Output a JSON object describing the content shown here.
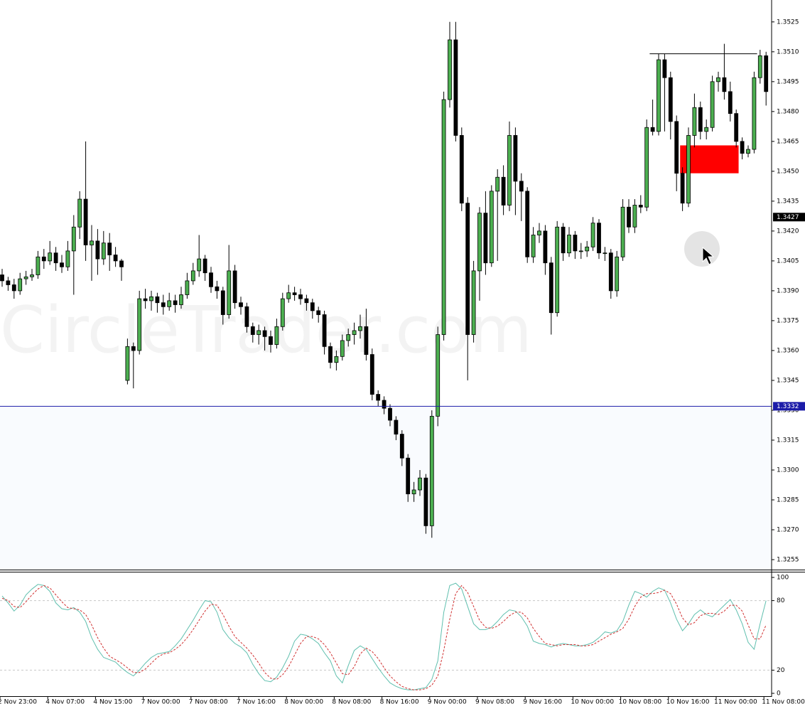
{
  "chart_data": [
    {
      "type": "candlestick",
      "watermark": "CircleTrader.com",
      "categories": [
        "2 Nov 23:00",
        null,
        null,
        null,
        null,
        null,
        null,
        null,
        "4 Nov 07:00",
        null,
        null,
        null,
        null,
        null,
        null,
        null,
        "4 Nov 15:00",
        null,
        null,
        null,
        null,
        null,
        null,
        null,
        "7 Nov 00:00",
        null,
        null,
        null,
        null,
        null,
        null,
        null,
        "7 Nov 08:00",
        null,
        null,
        null,
        null,
        null,
        null,
        null,
        "7 Nov 16:00",
        null,
        null,
        null,
        null,
        null,
        null,
        null,
        "8 Nov 00:00",
        null,
        null,
        null,
        null,
        null,
        null,
        null,
        "8 Nov 08:00",
        null,
        null,
        null,
        null,
        null,
        null,
        null,
        "8 Nov 16:00",
        null,
        null,
        null,
        null,
        null,
        null,
        null,
        "9 Nov 00:00",
        null,
        null,
        null,
        null,
        null,
        null,
        null,
        "9 Nov 08:00",
        null,
        null,
        null,
        null,
        null,
        null,
        null,
        "9 Nov 16:00",
        null,
        null,
        null,
        null,
        null,
        null,
        null,
        "10 Nov 00:00",
        null,
        null,
        null,
        null,
        null,
        null,
        null,
        "10 Nov 08:00",
        null,
        null,
        null,
        null,
        null,
        null,
        null,
        "10 Nov 16:00",
        null,
        null,
        null,
        null,
        null,
        null,
        null,
        "11 Nov 00:00",
        null,
        null,
        null,
        null,
        null,
        null,
        null,
        "11 Nov 08:00"
      ],
      "open": [
        1.3398,
        1.3395,
        1.3393,
        1.339,
        1.3396,
        1.3397,
        1.3398,
        1.3407,
        1.3405,
        1.3409,
        1.3404,
        1.3402,
        1.341,
        1.3422,
        1.3436,
        1.3413,
        1.3415,
        1.3406,
        1.3414,
        1.3408,
        1.3405,
        1.3345,
        1.3362,
        1.336,
        1.3386,
        1.3385,
        1.3387,
        1.3384,
        1.3382,
        1.3385,
        1.3383,
        1.3388,
        1.3395,
        1.34,
        1.3406,
        1.3399,
        1.3392,
        1.339,
        1.3378,
        1.34,
        1.3384,
        1.3382,
        1.3372,
        1.3368,
        1.337,
        1.3367,
        1.3363,
        1.3372,
        1.3386,
        1.3389,
        1.3388,
        1.3386,
        1.3384,
        1.338,
        1.3378,
        1.3362,
        1.3354,
        1.3357,
        1.3365,
        1.3368,
        1.337,
        1.3372,
        1.3358,
        1.3338,
        1.3335,
        1.3331,
        1.3325,
        1.3318,
        1.3306,
        1.3288,
        1.329,
        1.3296,
        1.3272,
        1.3327,
        1.3368,
        1.3486,
        1.3516,
        1.3468,
        1.3434,
        1.3368,
        1.34,
        1.3429,
        1.3404,
        1.344,
        1.3447,
        1.3433,
        1.3468,
        1.3445,
        1.344,
        1.3407,
        1.3418,
        1.342,
        1.3404,
        1.3379,
        1.3422,
        1.3409,
        1.3418,
        1.341,
        1.341,
        1.3412,
        1.3424,
        1.3409,
        1.3409,
        1.339,
        1.3407,
        1.3432,
        1.3422,
        1.3433,
        1.3432,
        1.3472,
        1.347,
        1.3506,
        1.3497,
        1.3475,
        1.3449,
        1.3434,
        1.3468,
        1.3482,
        1.347,
        1.3472,
        1.3495,
        1.3497,
        1.349,
        1.3479,
        1.3465,
        1.3459,
        1.3461,
        1.3497,
        1.3508
      ],
      "high": [
        1.3401,
        1.3397,
        1.3396,
        1.3399,
        1.34,
        1.3401,
        1.341,
        1.3411,
        1.3415,
        1.3412,
        1.3408,
        1.3415,
        1.3428,
        1.344,
        1.3465,
        1.3423,
        1.3421,
        1.342,
        1.3419,
        1.3412,
        1.3406,
        1.3366,
        1.3364,
        1.339,
        1.3391,
        1.339,
        1.3389,
        1.3388,
        1.3389,
        1.3388,
        1.3392,
        1.3399,
        1.3404,
        1.3418,
        1.3408,
        1.3402,
        1.3395,
        1.3392,
        1.3413,
        1.3403,
        1.3387,
        1.3384,
        1.3374,
        1.3373,
        1.3372,
        1.337,
        1.3376,
        1.3389,
        1.3393,
        1.3392,
        1.3391,
        1.3388,
        1.3386,
        1.3382,
        1.338,
        1.3364,
        1.336,
        1.3368,
        1.3371,
        1.3374,
        1.3378,
        1.3381,
        1.3361,
        1.334,
        1.3337,
        1.3333,
        1.3327,
        1.332,
        1.3308,
        1.3294,
        1.33,
        1.3298,
        1.333,
        1.3372,
        1.349,
        1.3525,
        1.3525,
        1.3472,
        1.3437,
        1.3405,
        1.3432,
        1.344,
        1.3443,
        1.3451,
        1.3453,
        1.3475,
        1.3472,
        1.3449,
        1.3442,
        1.3422,
        1.3424,
        1.3423,
        1.3407,
        1.3425,
        1.3424,
        1.3422,
        1.342,
        1.3414,
        1.3415,
        1.3427,
        1.3426,
        1.3412,
        1.3411,
        1.341,
        1.3436,
        1.3436,
        1.3436,
        1.3438,
        1.3476,
        1.3486,
        1.3509,
        1.3509,
        1.35,
        1.3478,
        1.3452,
        1.3472,
        1.3489,
        1.3485,
        1.3476,
        1.3498,
        1.35,
        1.3514,
        1.3495,
        1.3481,
        1.3467,
        1.3463,
        1.35,
        1.3511,
        1.351
      ],
      "low": [
        1.3392,
        1.339,
        1.3386,
        1.3388,
        1.3393,
        1.3395,
        1.3396,
        1.3401,
        1.3403,
        1.34,
        1.3399,
        1.34,
        1.3388,
        1.3416,
        1.3405,
        1.3395,
        1.3398,
        1.3403,
        1.34,
        1.3402,
        1.3395,
        1.3343,
        1.3341,
        1.3358,
        1.3381,
        1.338,
        1.3379,
        1.3378,
        1.338,
        1.3379,
        1.3381,
        1.3386,
        1.3393,
        1.3397,
        1.3395,
        1.3389,
        1.3386,
        1.3373,
        1.3376,
        1.3381,
        1.3378,
        1.3369,
        1.3364,
        1.3363,
        1.336,
        1.3359,
        1.3361,
        1.337,
        1.3384,
        1.3385,
        1.3383,
        1.338,
        1.3376,
        1.3374,
        1.3358,
        1.3351,
        1.335,
        1.3355,
        1.3362,
        1.3363,
        1.3366,
        1.3355,
        1.3335,
        1.3332,
        1.3328,
        1.3322,
        1.3315,
        1.3302,
        1.3284,
        1.3284,
        1.3287,
        1.3268,
        1.3266,
        1.3322,
        1.3365,
        1.3482,
        1.3465,
        1.343,
        1.3345,
        1.3364,
        1.3385,
        1.3398,
        1.3402,
        1.3405,
        1.3428,
        1.343,
        1.3428,
        1.3425,
        1.3404,
        1.3404,
        1.3414,
        1.3398,
        1.3368,
        1.3377,
        1.3405,
        1.3407,
        1.3406,
        1.3406,
        1.3407,
        1.341,
        1.3406,
        1.3405,
        1.3386,
        1.3387,
        1.3405,
        1.3419,
        1.3419,
        1.3429,
        1.343,
        1.3468,
        1.3468,
        1.347,
        1.3466,
        1.344,
        1.343,
        1.3432,
        1.3462,
        1.3466,
        1.3466,
        1.347,
        1.349,
        1.3486,
        1.3475,
        1.3462,
        1.3456,
        1.3457,
        1.3459,
        1.3494,
        1.3483
      ],
      "close": [
        1.3395,
        1.3393,
        1.339,
        1.3396,
        1.3397,
        1.3398,
        1.3407,
        1.3405,
        1.3409,
        1.3404,
        1.3402,
        1.341,
        1.3422,
        1.3436,
        1.3413,
        1.3415,
        1.3406,
        1.3414,
        1.3408,
        1.3405,
        1.3402,
        1.3362,
        1.336,
        1.3386,
        1.3385,
        1.3387,
        1.3384,
        1.3382,
        1.3385,
        1.3383,
        1.3388,
        1.3395,
        1.34,
        1.3406,
        1.3399,
        1.3392,
        1.339,
        1.3378,
        1.34,
        1.3384,
        1.3382,
        1.3372,
        1.3368,
        1.337,
        1.3367,
        1.3363,
        1.3372,
        1.3386,
        1.3389,
        1.3388,
        1.3386,
        1.3384,
        1.338,
        1.3378,
        1.3362,
        1.3354,
        1.3357,
        1.3365,
        1.3368,
        1.337,
        1.3372,
        1.3358,
        1.3338,
        1.3335,
        1.3331,
        1.3325,
        1.3318,
        1.3306,
        1.3288,
        1.329,
        1.3296,
        1.3272,
        1.3327,
        1.3368,
        1.3486,
        1.3516,
        1.3468,
        1.3434,
        1.3368,
        1.34,
        1.3429,
        1.3404,
        1.344,
        1.3447,
        1.3433,
        1.3468,
        1.3445,
        1.344,
        1.3407,
        1.3418,
        1.342,
        1.3404,
        1.3379,
        1.3422,
        1.3409,
        1.3418,
        1.341,
        1.341,
        1.3412,
        1.3424,
        1.3409,
        1.3409,
        1.339,
        1.3407,
        1.3432,
        1.3422,
        1.3433,
        1.3432,
        1.3472,
        1.347,
        1.3506,
        1.3497,
        1.3475,
        1.3449,
        1.3434,
        1.3468,
        1.3482,
        1.347,
        1.3472,
        1.3495,
        1.3497,
        1.349,
        1.3479,
        1.3465,
        1.3459,
        1.3461,
        1.3497,
        1.3508,
        1.349
      ],
      "bull_color": "#4caf50",
      "bear_color": "#000000",
      "ylim": [
        1.325,
        1.3536
      ],
      "yticks": [
        1.3525,
        {
          "value": 1.351,
          "label": "1.3510"
        },
        1.3495,
        {
          "value": 1.348,
          "label": "1.3480"
        },
        1.3465,
        {
          "value": 1.345,
          "label": "1.3450"
        },
        1.3435,
        {
          "value": 1.342,
          "label": "1.3420"
        },
        1.3405,
        {
          "value": 1.339,
          "label": "1.3390"
        },
        1.3375,
        {
          "value": 1.336,
          "label": "1.3360"
        },
        1.3345,
        {
          "value": 1.333,
          "label": "1.3330"
        },
        1.3315,
        {
          "value": 1.33,
          "label": "1.3300"
        },
        1.3285,
        {
          "value": 1.327,
          "label": "1.3270"
        },
        1.3255
      ],
      "level_line": {
        "value": 1.3332,
        "color": "#1c1ca8"
      },
      "current_price": 1.3427,
      "resistance": 1.3509,
      "zone": [
        1.3449,
        1.3463
      ],
      "zone_color": "#ff0000"
    },
    {
      "type": "line",
      "ylim": [
        0,
        100
      ],
      "yticks": [
        0,
        20,
        80,
        100
      ],
      "series": [
        {
          "color": "#5fbfae",
          "values": [
            84,
            78,
            71,
            76,
            85,
            90,
            94,
            93,
            88,
            78,
            73,
            72,
            74,
            70,
            62,
            48,
            38,
            31,
            29,
            27,
            22,
            18,
            15,
            20,
            26,
            31,
            34,
            35,
            36,
            41,
            47,
            55,
            63,
            72,
            80,
            79,
            70,
            55,
            48,
            43,
            40,
            35,
            25,
            17,
            11,
            10,
            14,
            22,
            32,
            45,
            51,
            50,
            47,
            43,
            35,
            28,
            15,
            9,
            24,
            37,
            41,
            38,
            30,
            22,
            15,
            9,
            6,
            4,
            3,
            3,
            4,
            5,
            12,
            28,
            70,
            93,
            95,
            90,
            75,
            60,
            55,
            55,
            57,
            62,
            68,
            72,
            71,
            66,
            58,
            45,
            43,
            42,
            40,
            42,
            43,
            42,
            41,
            41,
            42,
            44,
            48,
            53,
            52,
            54,
            62,
            76,
            88,
            86,
            83,
            88,
            91,
            89,
            78,
            64,
            54,
            60,
            68,
            72,
            68,
            66,
            71,
            76,
            81,
            72,
            60,
            44,
            38,
            60,
            80
          ]
        },
        {
          "color": "#d03030",
          "dashed": true,
          "values": [
            82,
            80,
            75,
            74,
            79,
            85,
            90,
            93,
            91,
            85,
            79,
            74,
            73,
            72,
            68,
            59,
            48,
            39,
            32,
            29,
            26,
            22,
            18,
            18,
            21,
            26,
            31,
            34,
            35,
            38,
            42,
            48,
            55,
            63,
            71,
            77,
            76,
            68,
            58,
            49,
            44,
            39,
            33,
            26,
            18,
            13,
            12,
            16,
            23,
            33,
            43,
            49,
            49,
            47,
            42,
            35,
            26,
            17,
            16,
            23,
            34,
            39,
            36,
            30,
            22,
            15,
            10,
            6,
            4,
            3,
            3,
            4,
            7,
            15,
            37,
            64,
            86,
            93,
            87,
            75,
            63,
            57,
            56,
            58,
            62,
            67,
            70,
            70,
            65,
            56,
            49,
            43,
            42,
            41,
            42,
            42,
            42,
            41,
            41,
            42,
            45,
            48,
            51,
            53,
            56,
            64,
            75,
            83,
            86,
            86,
            87,
            89,
            86,
            77,
            65,
            59,
            61,
            67,
            69,
            69,
            68,
            71,
            76,
            76,
            71,
            59,
            47,
            47,
            59
          ]
        }
      ]
    }
  ]
}
